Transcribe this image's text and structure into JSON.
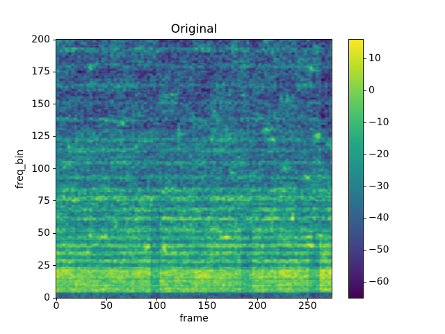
{
  "figure": {
    "background_color": "#ffffff",
    "spine_color": "#000000",
    "text_color": "#000000"
  },
  "chart_data": {
    "type": "heatmap",
    "title": "Original",
    "xlabel": "frame",
    "ylabel": "freq_bin",
    "x_range": [
      0,
      274
    ],
    "y_range": [
      0,
      200
    ],
    "x_ticks": [
      0,
      50,
      100,
      150,
      200,
      250
    ],
    "y_ticks": [
      0,
      25,
      50,
      75,
      100,
      125,
      150,
      175,
      200
    ],
    "grid": false,
    "legend": "none",
    "description": "Log-magnitude spectrogram heatmap, 200 frequency bins by 274 frames, viridis colormap. Bright yellow-green energy bands at low frequency bins (roughly 4-50), mid-level teal texture for bins 50-130, dark purple blocky texture with scattered bright spots above bin 130.",
    "colorbar": {
      "position": "right",
      "vmin": -65,
      "vmax": 16,
      "ticks": [
        10,
        0,
        -10,
        -20,
        -30,
        -40,
        -50,
        -60
      ],
      "colormap": "viridis",
      "stops": [
        "#440154",
        "#482475",
        "#414487",
        "#355f8d",
        "#2a788e",
        "#21918c",
        "#22a884",
        "#44bf70",
        "#7ad151",
        "#bddf26",
        "#fde725"
      ]
    },
    "texture": {
      "seed": 1337,
      "frames": 274,
      "bins": 200,
      "base_profile": [
        [
          0,
          3,
          -36
        ],
        [
          4,
          23,
          -8
        ],
        [
          24,
          55,
          -21
        ],
        [
          56,
          85,
          -26
        ],
        [
          86,
          130,
          -33
        ],
        [
          131,
          199,
          -40
        ]
      ],
      "bright_bands": [
        [
          5,
          7,
          6
        ],
        [
          9,
          13,
          6
        ],
        [
          15,
          21,
          9
        ],
        [
          27,
          29,
          14
        ],
        [
          33,
          35,
          12
        ],
        [
          39,
          41,
          16
        ],
        [
          45,
          47,
          10
        ],
        [
          51,
          53,
          8
        ],
        [
          60,
          62,
          14
        ],
        [
          67,
          69,
          10
        ],
        [
          75,
          78,
          12
        ],
        [
          82,
          84,
          8
        ],
        [
          92,
          94,
          10
        ],
        [
          103,
          105,
          9
        ],
        [
          113,
          115,
          8
        ],
        [
          121,
          123,
          9
        ],
        [
          137,
          139,
          8
        ],
        [
          150,
          152,
          7
        ],
        [
          163,
          165,
          8
        ],
        [
          178,
          180,
          7
        ],
        [
          190,
          193,
          9
        ]
      ],
      "col_mods": [
        [
          94,
          102,
          0,
          70,
          -9
        ],
        [
          184,
          194,
          0,
          55,
          -8
        ],
        [
          251,
          261,
          0,
          45,
          -8
        ],
        [
          263,
          272,
          100,
          199,
          -8
        ],
        [
          262,
          274,
          5,
          45,
          5
        ],
        [
          273,
          274,
          46,
          199,
          5
        ],
        [
          0,
          1,
          0,
          199,
          4
        ]
      ],
      "spots": 55
    }
  }
}
